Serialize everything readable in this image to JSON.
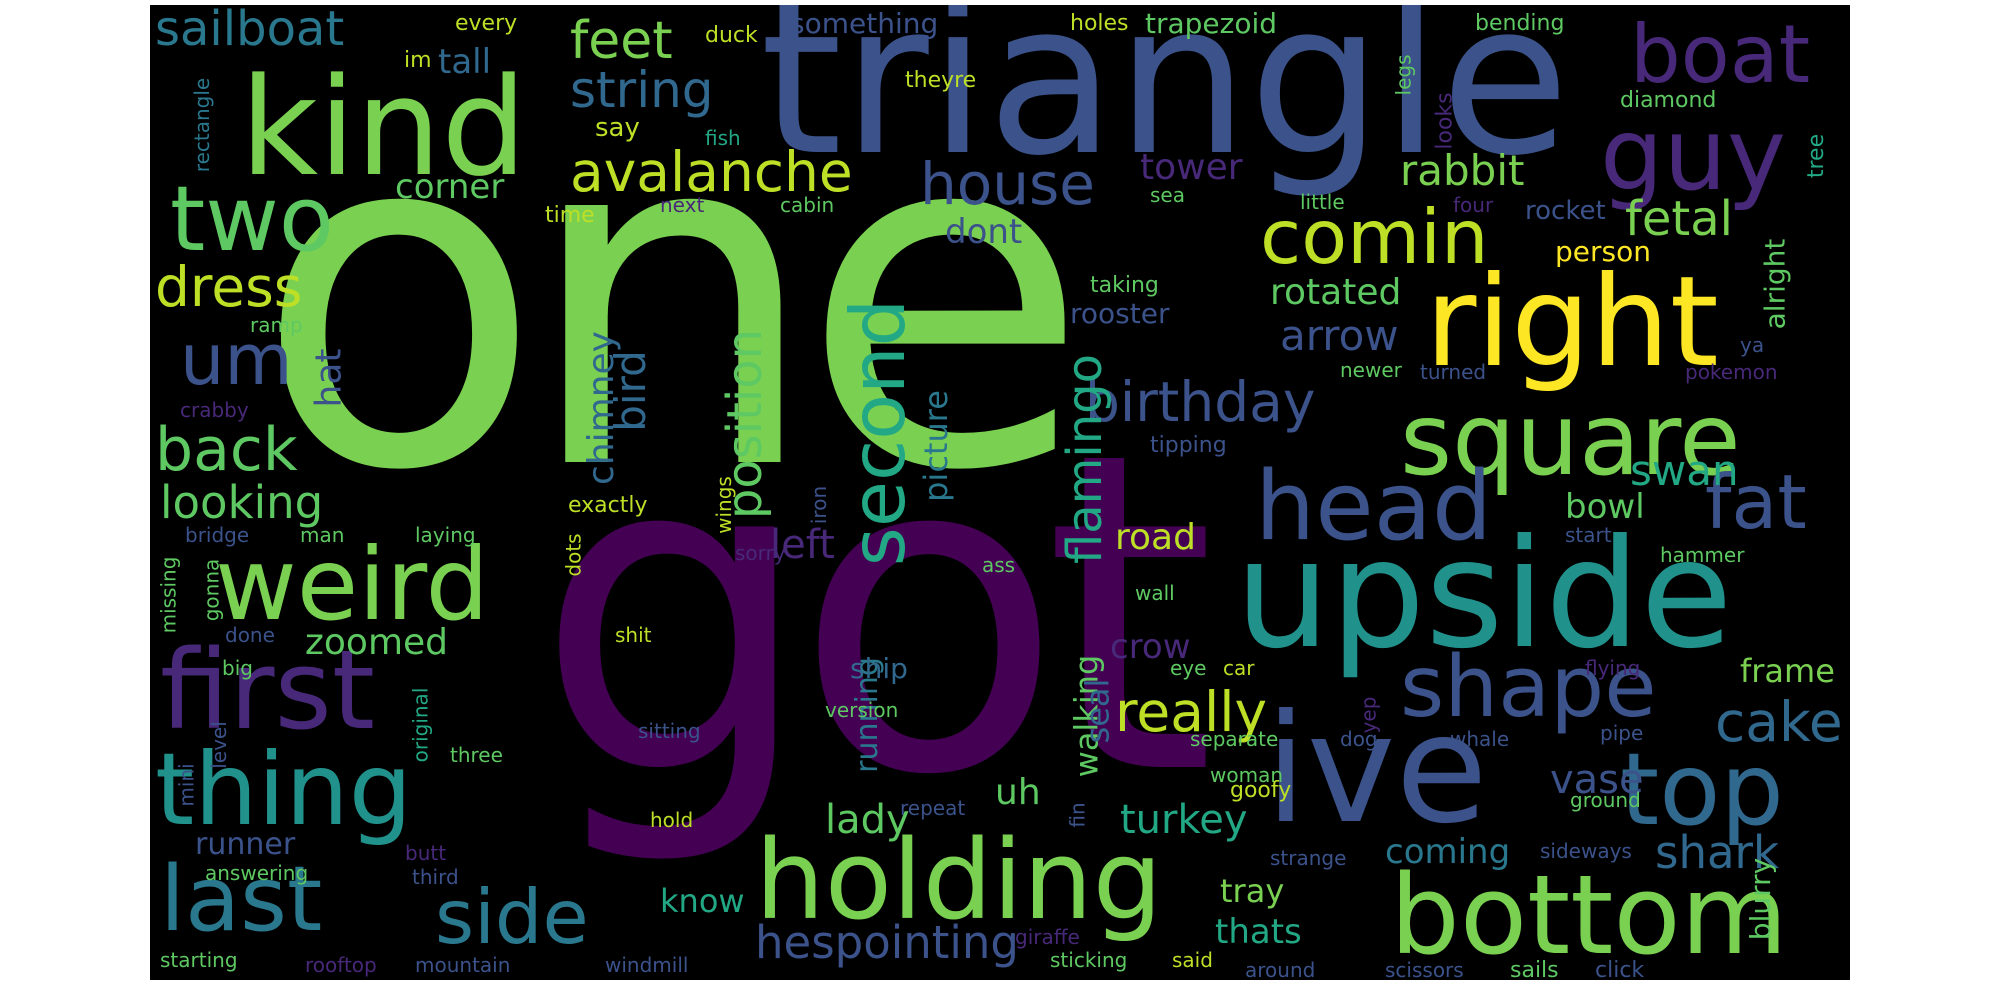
{
  "colors": {
    "background": "#000000",
    "page": "#ffffff",
    "palette": [
      "#440154",
      "#482677",
      "#404788",
      "#33638d",
      "#287d8e",
      "#1f968b",
      "#29af7f",
      "#55c667",
      "#73d055",
      "#b8de29",
      "#fde725"
    ]
  },
  "words": [
    {
      "text": "one",
      "color": "#7ad151"
    },
    {
      "text": "got",
      "color": "#440154"
    },
    {
      "text": "triangle",
      "color": "#3b528b"
    },
    {
      "text": "kind",
      "color": "#7ad151"
    },
    {
      "text": "ive",
      "color": "#3b528b"
    },
    {
      "text": "upside",
      "color": "#21918c"
    },
    {
      "text": "right",
      "color": "#fde725"
    },
    {
      "text": "holding",
      "color": "#7ad151"
    },
    {
      "text": "bottom",
      "color": "#7ad151"
    },
    {
      "text": "square",
      "color": "#7ad151"
    },
    {
      "text": "first",
      "color": "#482878"
    },
    {
      "text": "thing",
      "color": "#21918c"
    },
    {
      "text": "weird",
      "color": "#7ad151"
    },
    {
      "text": "head",
      "color": "#3b528b"
    },
    {
      "text": "top",
      "color": "#31688e"
    },
    {
      "text": "guy",
      "color": "#482878"
    },
    {
      "text": "boat",
      "color": "#482878"
    },
    {
      "text": "two",
      "color": "#5ec962"
    },
    {
      "text": "last",
      "color": "#2a788e"
    },
    {
      "text": "comin",
      "color": "#bddf26"
    },
    {
      "text": "shape",
      "color": "#3b528b"
    },
    {
      "text": "side",
      "color": "#2a788e"
    },
    {
      "text": "fat",
      "color": "#3b528b"
    },
    {
      "text": "second",
      "color": "#22a884"
    },
    {
      "text": "avalanche",
      "color": "#bddf26"
    },
    {
      "text": "house",
      "color": "#3b528b"
    },
    {
      "text": "birthday",
      "color": "#3b528b"
    },
    {
      "text": "um",
      "color": "#3b528b"
    },
    {
      "text": "back",
      "color": "#5ec962"
    },
    {
      "text": "really",
      "color": "#bddf26"
    },
    {
      "text": "feet",
      "color": "#7ad151"
    },
    {
      "text": "string",
      "color": "#31688e"
    },
    {
      "text": "sailboat",
      "color": "#2a788e"
    },
    {
      "text": "dress",
      "color": "#bddf26"
    },
    {
      "text": "cake",
      "color": "#31688e"
    },
    {
      "text": "position",
      "color": "#5ec962"
    },
    {
      "text": "flamingo",
      "color": "#22a884"
    },
    {
      "text": "looking",
      "color": "#5ec962"
    },
    {
      "text": "hespointing",
      "color": "#3b528b"
    },
    {
      "text": "fetal",
      "color": "#7ad151"
    },
    {
      "text": "rabbit",
      "color": "#7ad151"
    },
    {
      "text": "rotated",
      "color": "#5ec962"
    },
    {
      "text": "arrow",
      "color": "#3b528b"
    },
    {
      "text": "shark",
      "color": "#31688e"
    },
    {
      "text": "swan",
      "color": "#22a884"
    },
    {
      "text": "zoomed",
      "color": "#5ec962"
    },
    {
      "text": "lady",
      "color": "#5ec962"
    },
    {
      "text": "turkey",
      "color": "#22a884"
    },
    {
      "text": "frame",
      "color": "#7ad151"
    },
    {
      "text": "vase",
      "color": "#3b528b"
    },
    {
      "text": "tower",
      "color": "#482878"
    },
    {
      "text": "bird",
      "color": "#31688e"
    },
    {
      "text": "chimney",
      "color": "#31688e"
    },
    {
      "text": "hat",
      "color": "#3b528b"
    },
    {
      "text": "left",
      "color": "#482878"
    },
    {
      "text": "corner",
      "color": "#5ec962"
    },
    {
      "text": "tall",
      "color": "#31688e"
    },
    {
      "text": "road",
      "color": "#bddf26"
    },
    {
      "text": "bowl",
      "color": "#5ec962"
    },
    {
      "text": "dont",
      "color": "#3b528b"
    },
    {
      "text": "picture",
      "color": "#2a788e"
    },
    {
      "text": "walking",
      "color": "#5ec962"
    },
    {
      "text": "running",
      "color": "#2a788e"
    },
    {
      "text": "seal",
      "color": "#31688e"
    },
    {
      "text": "uh",
      "color": "#5ec962"
    },
    {
      "text": "crow",
      "color": "#482878"
    },
    {
      "text": "coming",
      "color": "#2a788e"
    },
    {
      "text": "tray",
      "color": "#7ad151"
    },
    {
      "text": "thats",
      "color": "#22a884"
    },
    {
      "text": "know",
      "color": "#22a884"
    },
    {
      "text": "runner",
      "color": "#3b528b"
    },
    {
      "text": "ship",
      "color": "#31688e"
    },
    {
      "text": "trapezoid",
      "color": "#5ec962"
    },
    {
      "text": "something",
      "color": "#3b528b"
    },
    {
      "text": "rooster",
      "color": "#3b528b"
    },
    {
      "text": "alright",
      "color": "#5ec962"
    },
    {
      "text": "blurry",
      "color": "#5ec962"
    },
    {
      "text": "person",
      "color": "#fde725"
    },
    {
      "text": "rocket",
      "color": "#3b528b"
    },
    {
      "text": "say",
      "color": "#bddf26"
    },
    {
      "text": "every",
      "color": "#bddf26"
    },
    {
      "text": "duck",
      "color": "#bddf26"
    },
    {
      "text": "holes",
      "color": "#bddf26"
    },
    {
      "text": "bending",
      "color": "#5ec962"
    },
    {
      "text": "theyre",
      "color": "#bddf26"
    },
    {
      "text": "diamond",
      "color": "#5ec962"
    },
    {
      "text": "legs",
      "color": "#5ec962"
    },
    {
      "text": "looks",
      "color": "#482878"
    },
    {
      "text": "tree",
      "color": "#22a884"
    },
    {
      "text": "im",
      "color": "#bddf26"
    },
    {
      "text": "rectangle",
      "color": "#2a788e"
    },
    {
      "text": "fish",
      "color": "#22a884"
    },
    {
      "text": "time",
      "color": "#bddf26"
    },
    {
      "text": "next",
      "color": "#482878"
    },
    {
      "text": "cabin",
      "color": "#5ec962"
    },
    {
      "text": "sea",
      "color": "#5ec962"
    },
    {
      "text": "little",
      "color": "#5ec962"
    },
    {
      "text": "four",
      "color": "#482878"
    },
    {
      "text": "taking",
      "color": "#5ec962"
    },
    {
      "text": "ramp",
      "color": "#5ec962"
    },
    {
      "text": "ya",
      "color": "#3b528b"
    },
    {
      "text": "newer",
      "color": "#5ec962"
    },
    {
      "text": "turned",
      "color": "#3b528b"
    },
    {
      "text": "pokemon",
      "color": "#482878"
    },
    {
      "text": "crabby",
      "color": "#482878"
    },
    {
      "text": "tipping",
      "color": "#3b528b"
    },
    {
      "text": "wings",
      "color": "#bddf26"
    },
    {
      "text": "exactly",
      "color": "#bddf26"
    },
    {
      "text": "iron",
      "color": "#3b528b"
    },
    {
      "text": "bridge",
      "color": "#3b528b"
    },
    {
      "text": "man",
      "color": "#5ec962"
    },
    {
      "text": "laying",
      "color": "#5ec962"
    },
    {
      "text": "dots",
      "color": "#bddf26"
    },
    {
      "text": "sorry",
      "color": "#482878"
    },
    {
      "text": "ass",
      "color": "#5ec962"
    },
    {
      "text": "start",
      "color": "#3b528b"
    },
    {
      "text": "hammer",
      "color": "#5ec962"
    },
    {
      "text": "missing",
      "color": "#5ec962"
    },
    {
      "text": "gonna",
      "color": "#5ec962"
    },
    {
      "text": "done",
      "color": "#3b528b"
    },
    {
      "text": "wall",
      "color": "#5ec962"
    },
    {
      "text": "shit",
      "color": "#bddf26"
    },
    {
      "text": "big",
      "color": "#5ec962"
    },
    {
      "text": "eye",
      "color": "#5ec962"
    },
    {
      "text": "car",
      "color": "#bddf26"
    },
    {
      "text": "flying",
      "color": "#482878"
    },
    {
      "text": "yep",
      "color": "#482878"
    },
    {
      "text": "mini",
      "color": "#3b528b"
    },
    {
      "text": "level",
      "color": "#3b528b"
    },
    {
      "text": "original",
      "color": "#22a884"
    },
    {
      "text": "version",
      "color": "#5ec962"
    },
    {
      "text": "sitting",
      "color": "#3b528b"
    },
    {
      "text": "three",
      "color": "#5ec962"
    },
    {
      "text": "separate",
      "color": "#5ec962"
    },
    {
      "text": "dog",
      "color": "#3b528b"
    },
    {
      "text": "whale",
      "color": "#3b528b"
    },
    {
      "text": "pipe",
      "color": "#3b528b"
    },
    {
      "text": "woman",
      "color": "#5ec962"
    },
    {
      "text": "goofy",
      "color": "#bddf26"
    },
    {
      "text": "ground",
      "color": "#5ec962"
    },
    {
      "text": "hold",
      "color": "#bddf26"
    },
    {
      "text": "repeat",
      "color": "#3b528b"
    },
    {
      "text": "fin",
      "color": "#3b528b"
    },
    {
      "text": "butt",
      "color": "#482878"
    },
    {
      "text": "strange",
      "color": "#3b528b"
    },
    {
      "text": "sideways",
      "color": "#3b528b"
    },
    {
      "text": "answering",
      "color": "#5ec962"
    },
    {
      "text": "third",
      "color": "#3b528b"
    },
    {
      "text": "starting",
      "color": "#5ec962"
    },
    {
      "text": "rooftop",
      "color": "#482878"
    },
    {
      "text": "mountain",
      "color": "#3b528b"
    },
    {
      "text": "windmill",
      "color": "#3b528b"
    },
    {
      "text": "giraffe",
      "color": "#482878"
    },
    {
      "text": "sticking",
      "color": "#5ec962"
    },
    {
      "text": "said",
      "color": "#bddf26"
    },
    {
      "text": "around",
      "color": "#3b528b"
    },
    {
      "text": "scissors",
      "color": "#3b528b"
    },
    {
      "text": "sails",
      "color": "#5ec962"
    },
    {
      "text": "click",
      "color": "#3b528b"
    }
  ]
}
